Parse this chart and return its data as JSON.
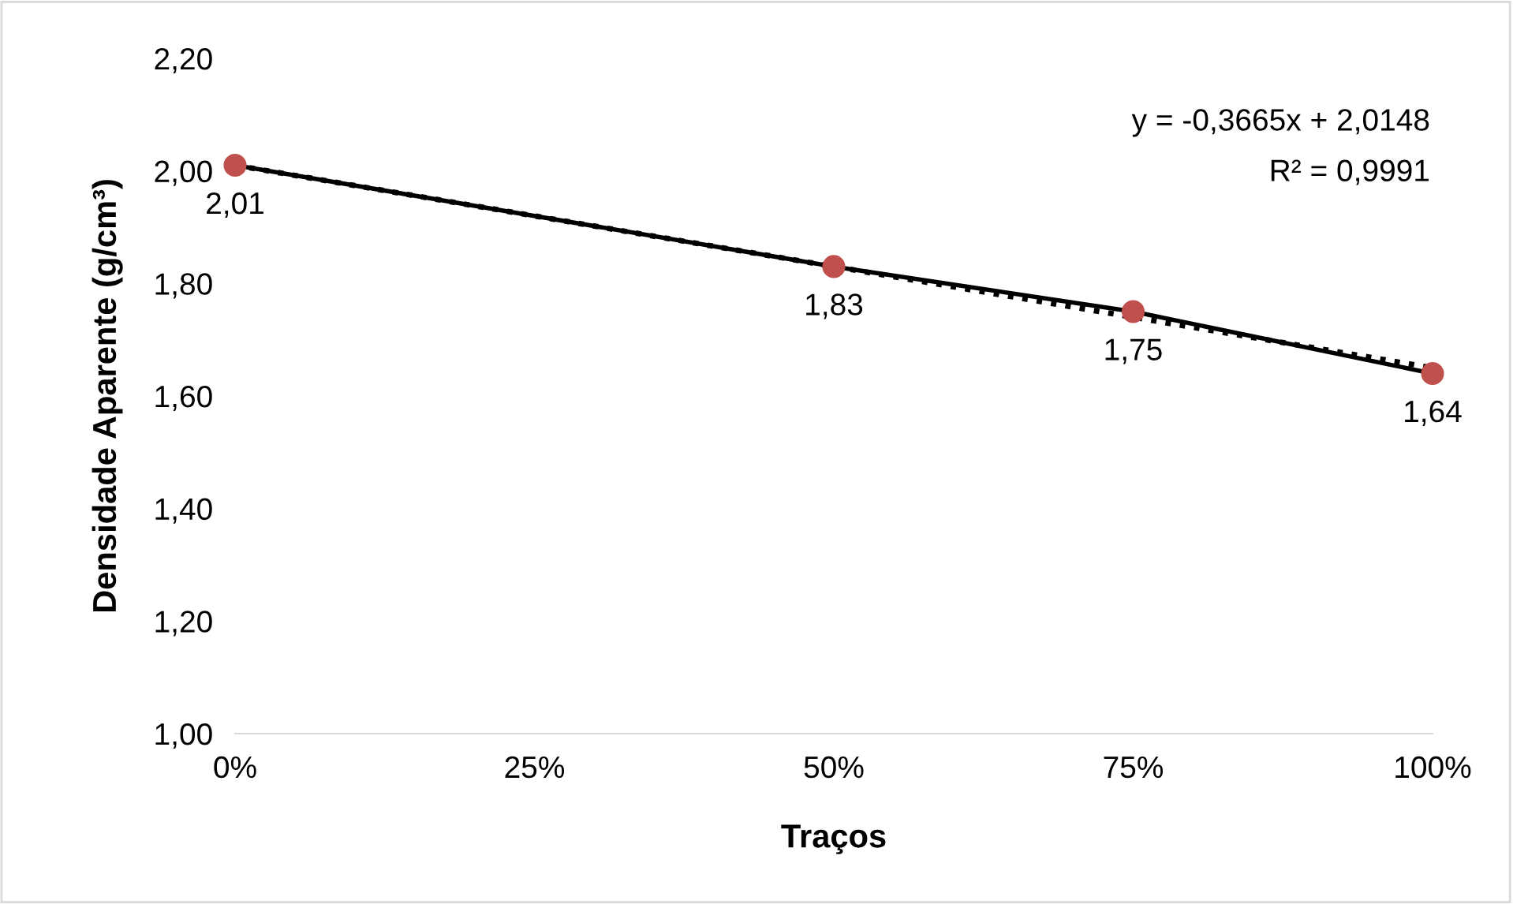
{
  "chart_data": {
    "type": "line",
    "xlabel": "Traços",
    "ylabel": "Densidade Aparente (g/cm³)",
    "x": [
      0,
      0.5,
      0.75,
      1
    ],
    "series": [
      {
        "color": "#000000",
        "values": [
          2.01,
          1.83,
          1.75,
          1.64
        ],
        "line_style": "solid",
        "marker": "none"
      },
      {
        "x": [
          0,
          1
        ],
        "color": "#000000",
        "values": [
          2.01,
          1.65
        ],
        "line_style": "dotted",
        "marker": "none"
      },
      {
        "type": "scatter",
        "color": "#c0504d",
        "values": [
          2.01,
          1.83,
          1.75,
          1.64
        ],
        "marker": "circle",
        "value_labels": [
          "2,01",
          "1,83",
          "1,75",
          "1,64"
        ]
      }
    ],
    "xlim": [
      0,
      1
    ],
    "ylim": [
      1.0,
      2.2
    ],
    "xticks": [
      {
        "value": 0,
        "label": "0%"
      },
      {
        "value": 0.25,
        "label": "25%"
      },
      {
        "value": 0.5,
        "label": "50%"
      },
      {
        "value": 0.75,
        "label": "75%"
      },
      {
        "value": 1,
        "label": "100%"
      }
    ],
    "yticks": [
      {
        "value": 1.0,
        "label": "1,00"
      },
      {
        "value": 1.2,
        "label": "1,20"
      },
      {
        "value": 1.4,
        "label": "1,40"
      },
      {
        "value": 1.6,
        "label": "1,60"
      },
      {
        "value": 1.8,
        "label": "1,80"
      },
      {
        "value": 2.0,
        "label": "2,00"
      },
      {
        "value": 2.2,
        "label": "2,20"
      }
    ],
    "grid": false,
    "legend": false,
    "annotations": [
      "y = -0,3665x + 2,0148",
      "R² = 0,9991"
    ]
  }
}
